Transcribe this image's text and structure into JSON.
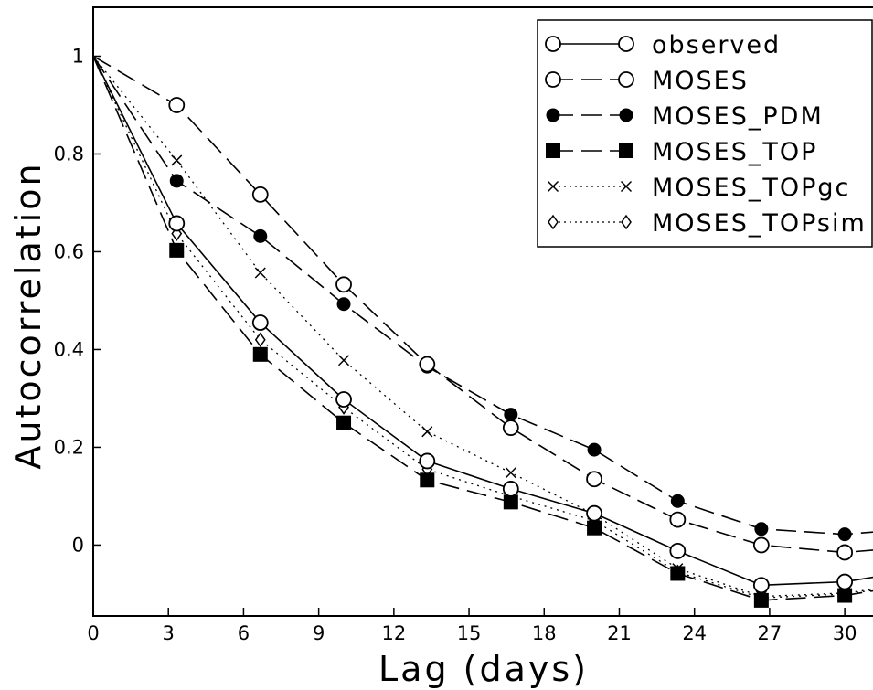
{
  "chart_data": {
    "type": "line",
    "xlabel": "Lag (days)",
    "ylabel": "Autocorrelation",
    "xlim": [
      0,
      31.2
    ],
    "ylim": [
      -0.145,
      1.1
    ],
    "x_ticks": [
      "0",
      "3",
      "6",
      "9",
      "12",
      "15",
      "18",
      "21",
      "24",
      "27",
      "30"
    ],
    "y_ticks": [
      "0",
      "0.2",
      "0.4",
      "0.6",
      "0.8",
      "1"
    ],
    "legend_position": "top-right",
    "x": [
      0,
      3.33,
      6.67,
      10,
      13.33,
      16.67,
      20,
      23.33,
      26.67,
      30,
      31.2
    ],
    "series": [
      {
        "name": "observed",
        "line_style": "solid",
        "marker": "open-circle",
        "values": [
          1.0,
          0.658,
          0.455,
          0.298,
          0.172,
          0.115,
          0.065,
          -0.012,
          -0.082,
          -0.075,
          -0.065
        ]
      },
      {
        "name": "MOSES",
        "line_style": "dashed",
        "marker": "open-circle",
        "values": [
          1.0,
          0.9,
          0.717,
          0.533,
          0.37,
          0.24,
          0.135,
          0.052,
          0.0,
          -0.015,
          -0.01
        ]
      },
      {
        "name": "MOSES_PDM",
        "line_style": "dashed",
        "marker": "filled-circle",
        "values": [
          1.0,
          0.745,
          0.632,
          0.493,
          0.365,
          0.267,
          0.195,
          0.09,
          0.033,
          0.022,
          0.027
        ]
      },
      {
        "name": "MOSES_TOP",
        "line_style": "dashed",
        "marker": "filled-square",
        "values": [
          1.0,
          0.603,
          0.39,
          0.25,
          0.133,
          0.088,
          0.035,
          -0.058,
          -0.113,
          -0.103,
          -0.093
        ]
      },
      {
        "name": "MOSES_TOPgc",
        "line_style": "dotted",
        "marker": "x",
        "values": [
          1.0,
          0.787,
          0.557,
          0.378,
          0.232,
          0.148,
          0.063,
          -0.048,
          -0.105,
          -0.098,
          -0.09
        ]
      },
      {
        "name": "MOSES_TOPsim",
        "line_style": "dotted",
        "marker": "open-diamond",
        "values": [
          1.0,
          0.637,
          0.42,
          0.282,
          0.155,
          0.1,
          0.05,
          -0.055,
          -0.108,
          -0.1,
          -0.092
        ]
      }
    ]
  }
}
